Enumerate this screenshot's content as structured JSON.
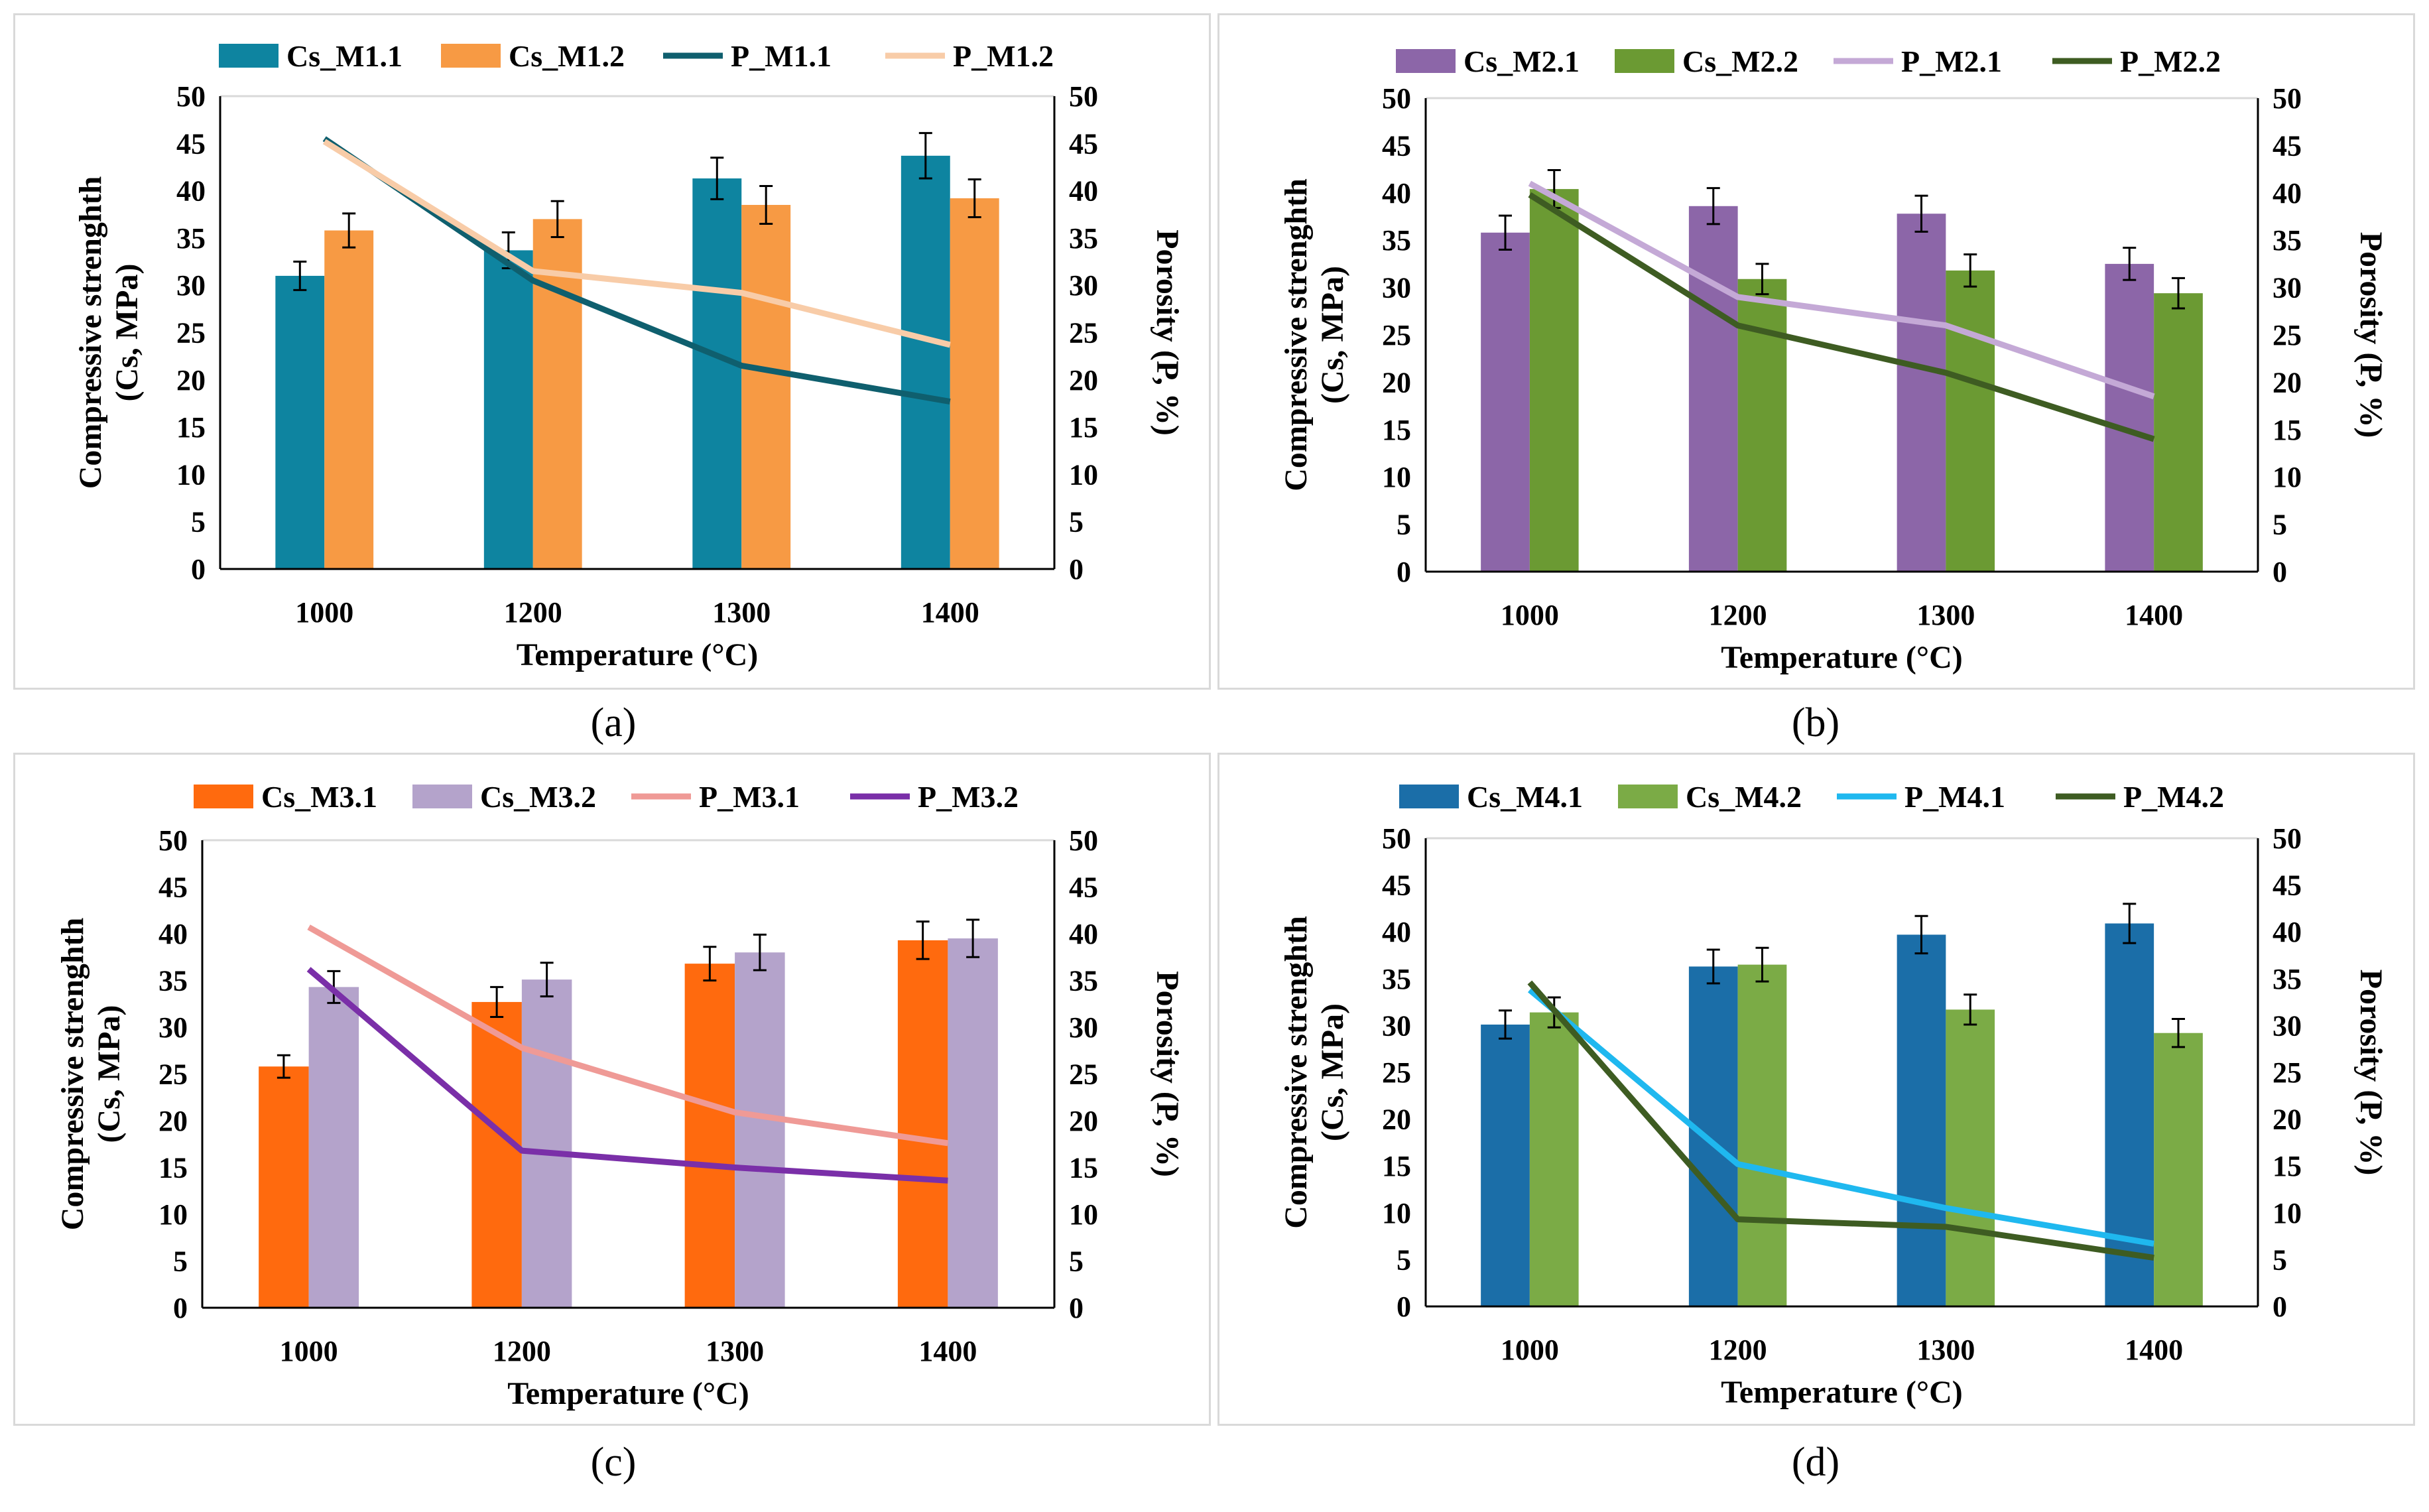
{
  "common": {
    "categories": [
      "1000",
      "1200",
      "1300",
      "1400"
    ],
    "xlabel": "Temperature (°C)",
    "ylabel_left_line1": "Compressive strenghth",
    "ylabel_left_line2": "(Cs, MPa)",
    "ylabel_right": "Porosity (P, %)",
    "ylim": [
      0,
      50
    ],
    "yticks": [
      "0",
      "5",
      "10",
      "15",
      "20",
      "25",
      "30",
      "35",
      "40",
      "45",
      "50"
    ]
  },
  "chart_data": [
    {
      "type": "bar",
      "panel": "a",
      "caption": "(a)",
      "categories": [
        "1000",
        "1200",
        "1300",
        "1400"
      ],
      "xlabel": "Temperature (°C)",
      "ylabel": "Compressive strenghth (Cs, MPa)",
      "y2label": "Porosity (P, %)",
      "ylim": [
        0,
        50
      ],
      "y2lim": [
        0,
        50
      ],
      "bars": [
        {
          "name": "Cs_M1.1",
          "color": "#0e84a0",
          "values": [
            31,
            33.7,
            41.3,
            43.7
          ],
          "errors": [
            1.5,
            1.9,
            2.2,
            2.4
          ]
        },
        {
          "name": "Cs_M1.2",
          "color": "#f79a44",
          "values": [
            35.8,
            37.0,
            38.5,
            39.2
          ],
          "errors": [
            1.8,
            1.9,
            2.0,
            2.0
          ]
        }
      ],
      "lines": [
        {
          "name": "P_M1.1",
          "color": "#0f5f6e",
          "values": [
            45.5,
            30.5,
            21.5,
            17.7
          ]
        },
        {
          "name": "P_M1.2",
          "color": "#f8cca8",
          "values": [
            45.2,
            31.5,
            29.2,
            23.7
          ]
        }
      ]
    },
    {
      "type": "bar",
      "panel": "b",
      "caption": "(b)",
      "categories": [
        "1000",
        "1200",
        "1300",
        "1400"
      ],
      "xlabel": "Temperature (°C)",
      "ylabel": "Compressive strenghth (Cs, MPa)",
      "y2label": "Porosity (P, %)",
      "ylim": [
        0,
        50
      ],
      "y2lim": [
        0,
        50
      ],
      "bars": [
        {
          "name": "Cs_M2.1",
          "color": "#8c66a8",
          "values": [
            35.8,
            38.6,
            37.8,
            32.5
          ],
          "errors": [
            1.8,
            1.9,
            1.9,
            1.7
          ]
        },
        {
          "name": "Cs_M2.2",
          "color": "#6b9a33",
          "values": [
            40.4,
            30.9,
            31.8,
            29.4
          ],
          "errors": [
            2.0,
            1.6,
            1.7,
            1.6
          ]
        }
      ],
      "lines": [
        {
          "name": "P_M2.1",
          "color": "#c4a9d6",
          "values": [
            41,
            29,
            26,
            18.5
          ]
        },
        {
          "name": "P_M2.2",
          "color": "#3e5c22",
          "values": [
            39.8,
            26,
            21,
            14
          ]
        }
      ]
    },
    {
      "type": "bar",
      "panel": "c",
      "caption": "(c)",
      "categories": [
        "1000",
        "1200",
        "1300",
        "1400"
      ],
      "xlabel": "Temperature (°C)",
      "ylabel": "Compressive strenghth (Cs, MPa)",
      "y2label": "Porosity (P, %)",
      "ylim": [
        0,
        50
      ],
      "y2lim": [
        0,
        50
      ],
      "bars": [
        {
          "name": "Cs_M3.1",
          "color": "#ff6a0e",
          "values": [
            25.8,
            32.7,
            36.8,
            39.3
          ],
          "errors": [
            1.2,
            1.6,
            1.8,
            2.0
          ]
        },
        {
          "name": "Cs_M3.2",
          "color": "#b4a3cb",
          "values": [
            34.3,
            35.1,
            38.0,
            39.5
          ],
          "errors": [
            1.7,
            1.8,
            1.9,
            2.0
          ]
        }
      ],
      "lines": [
        {
          "name": "P_M3.1",
          "color": "#ef9a96",
          "values": [
            40.7,
            27.8,
            20.9,
            17.6
          ]
        },
        {
          "name": "P_M3.2",
          "color": "#7a2fa8",
          "values": [
            36.2,
            16.8,
            15,
            13.6
          ]
        }
      ]
    },
    {
      "type": "bar",
      "panel": "d",
      "caption": "(d)",
      "categories": [
        "1000",
        "1200",
        "1300",
        "1400"
      ],
      "xlabel": "Temperature (°C)",
      "ylabel": "Compressive strenghth (Cs, MPa)",
      "y2label": "Porosity (P, %)",
      "ylim": [
        0,
        50
      ],
      "y2lim": [
        0,
        50
      ],
      "bars": [
        {
          "name": "Cs_M4.1",
          "color": "#1b6ea8",
          "values": [
            30.1,
            36.3,
            39.7,
            40.9
          ],
          "errors": [
            1.5,
            1.8,
            2.0,
            2.1
          ]
        },
        {
          "name": "Cs_M4.2",
          "color": "#7bab46",
          "values": [
            31.4,
            36.5,
            31.7,
            29.2
          ],
          "errors": [
            1.6,
            1.8,
            1.6,
            1.5
          ]
        }
      ],
      "lines": [
        {
          "name": "P_M4.1",
          "color": "#1fb8ef",
          "values": [
            33.8,
            15.2,
            10.5,
            6.7
          ]
        },
        {
          "name": "P_M4.2",
          "color": "#3e5c22",
          "values": [
            34.6,
            9.3,
            8.5,
            5.2
          ]
        }
      ]
    }
  ]
}
